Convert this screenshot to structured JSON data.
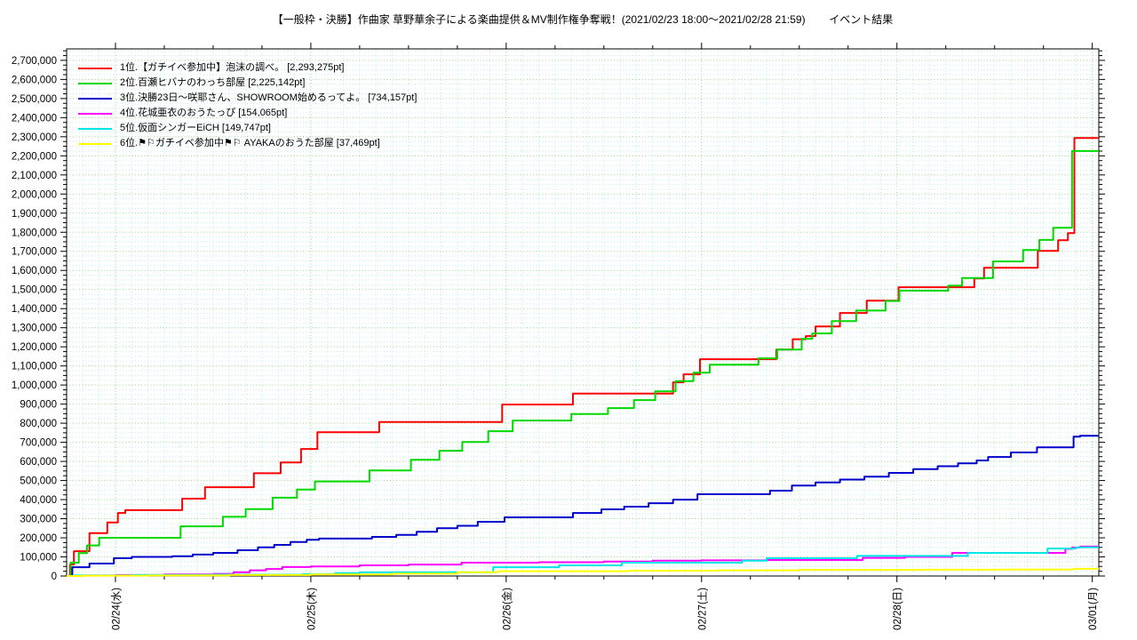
{
  "title": "【一般枠・決勝】作曲家 草野華余子による楽曲提供＆MV制作権争奪戦！(2021/02/23 18:00～2021/02/28 21:59)        イベント結果",
  "legend": {
    "items": [
      {
        "label": "1位.【ガチイベ参加中】泡沫の調べ。 [2,293,275pt]",
        "color": "#ff0000"
      },
      {
        "label": "2位.百瀬ヒバナのわっち部屋 [2,225,142pt]",
        "color": "#00d800"
      },
      {
        "label": "3位.決勝23日～咲耶さん、SHOWROOM始めるってよ。 [734,157pt]",
        "color": "#0000cc"
      },
      {
        "label": "4位.花城亜衣のおうたっぴ [154,065pt]",
        "color": "#ff00ff"
      },
      {
        "label": "5位.仮面シンガーEiCH [149,747pt]",
        "color": "#00e5e5"
      },
      {
        "label": "6位.⚑⚐ガチイベ参加中⚑⚐ AYAKAのおうた部屋 [37,469pt]",
        "color": "#ffff00"
      }
    ]
  },
  "chart_data": {
    "type": "line",
    "title": "【一般枠・決勝】作曲家 草野華余子による楽曲提供＆MV制作権争奪戦！(2021/02/23 18:00～2021/02/28 21:59) イベント結果",
    "x_axis": {
      "unit": "hours since 2021/02/23 18:00",
      "range": [
        0,
        126.8
      ],
      "major_ticks": [
        {
          "hour": 6,
          "label": "02/24(水)"
        },
        {
          "hour": 30,
          "label": "02/25(木)"
        },
        {
          "hour": 54,
          "label": "02/26(金)"
        },
        {
          "hour": 78,
          "label": "02/27(土)"
        },
        {
          "hour": 102,
          "label": "02/28(日)"
        },
        {
          "hour": 126,
          "label": "03/01(月)"
        }
      ],
      "minor_tick_interval_hours": 6,
      "minor_grid_interval_hours": 2
    },
    "y_axis": {
      "min": 0,
      "max": 2760000,
      "max_label": 2700000,
      "major_tick_interval": 100000,
      "minor_tick_interval": 25000,
      "label_format": "thousands-comma"
    },
    "grid": {
      "major_color": "#8fd98f",
      "minor_color": "#bcebeb",
      "style": "dotted"
    },
    "series": [
      {
        "name": "1位.【ガチイベ参加中】泡沫の調べ。",
        "final_points": 2293275,
        "color": "#ff0000",
        "points": [
          [
            0,
            0
          ],
          [
            0.4,
            60000
          ],
          [
            0.9,
            130000
          ],
          [
            2.8,
            225000
          ],
          [
            5.0,
            280000
          ],
          [
            6.3,
            330000
          ],
          [
            7.2,
            345000
          ],
          [
            14.2,
            405000
          ],
          [
            17.0,
            465000
          ],
          [
            23.0,
            538000
          ],
          [
            26.3,
            595000
          ],
          [
            28.8,
            665000
          ],
          [
            30.8,
            753000
          ],
          [
            38.4,
            806000
          ],
          [
            53.5,
            898000
          ],
          [
            62.2,
            955000
          ],
          [
            74.5,
            1014000
          ],
          [
            75.8,
            1056000
          ],
          [
            77.8,
            1135000
          ],
          [
            87.2,
            1186000
          ],
          [
            89.2,
            1240000
          ],
          [
            90.8,
            1256000
          ],
          [
            92.0,
            1307000
          ],
          [
            95.0,
            1377000
          ],
          [
            98.3,
            1442000
          ],
          [
            102.2,
            1512000
          ],
          [
            111.5,
            1558000
          ],
          [
            112.7,
            1614000
          ],
          [
            119.3,
            1702000
          ],
          [
            121.8,
            1758000
          ],
          [
            123.0,
            1795000
          ],
          [
            123.8,
            2293275
          ],
          [
            126.8,
            2293275
          ]
        ]
      },
      {
        "name": "2位.百瀬ヒバナのわっち部屋",
        "final_points": 2225142,
        "color": "#00d800",
        "points": [
          [
            0,
            0
          ],
          [
            0.5,
            70000
          ],
          [
            1.5,
            120000
          ],
          [
            2.5,
            160000
          ],
          [
            4.0,
            200000
          ],
          [
            14.0,
            260000
          ],
          [
            19.2,
            310000
          ],
          [
            22.0,
            350000
          ],
          [
            25.3,
            410000
          ],
          [
            28.3,
            453000
          ],
          [
            30.5,
            495000
          ],
          [
            37.2,
            553000
          ],
          [
            42.3,
            609000
          ],
          [
            45.8,
            656000
          ],
          [
            48.6,
            702000
          ],
          [
            51.8,
            758000
          ],
          [
            54.8,
            814000
          ],
          [
            62.0,
            848000
          ],
          [
            66.5,
            879000
          ],
          [
            69.7,
            921000
          ],
          [
            72.3,
            967000
          ],
          [
            74.8,
            1020000
          ],
          [
            77.0,
            1065000
          ],
          [
            79.0,
            1107000
          ],
          [
            85.0,
            1140000
          ],
          [
            87.3,
            1186000
          ],
          [
            90.3,
            1242000
          ],
          [
            91.6,
            1270000
          ],
          [
            94.0,
            1335000
          ],
          [
            97.0,
            1390000
          ],
          [
            100.6,
            1440000
          ],
          [
            102.3,
            1494000
          ],
          [
            108.3,
            1520000
          ],
          [
            110.0,
            1560000
          ],
          [
            113.8,
            1647000
          ],
          [
            117.5,
            1707000
          ],
          [
            119.5,
            1760000
          ],
          [
            121.2,
            1823000
          ],
          [
            123.5,
            2225142
          ],
          [
            126.8,
            2225142
          ]
        ]
      },
      {
        "name": "3位.決勝23日～咲耶さん、SHOWROOM始めるってよ。",
        "final_points": 734157,
        "color": "#0000cc",
        "points": [
          [
            0,
            0
          ],
          [
            0.7,
            46000
          ],
          [
            2.8,
            65000
          ],
          [
            5.8,
            93000
          ],
          [
            8.0,
            100000
          ],
          [
            13.0,
            104000
          ],
          [
            15.5,
            112000
          ],
          [
            18.0,
            121000
          ],
          [
            21.0,
            135000
          ],
          [
            23.5,
            150000
          ],
          [
            25.5,
            163000
          ],
          [
            27.5,
            178000
          ],
          [
            29.5,
            190000
          ],
          [
            31.0,
            196000
          ],
          [
            37.5,
            205000
          ],
          [
            40.5,
            215000
          ],
          [
            43.0,
            232000
          ],
          [
            45.5,
            250000
          ],
          [
            48.0,
            263000
          ],
          [
            50.5,
            284000
          ],
          [
            53.8,
            307000
          ],
          [
            62.2,
            330000
          ],
          [
            65.7,
            349000
          ],
          [
            68.5,
            363000
          ],
          [
            71.5,
            381000
          ],
          [
            74.5,
            400000
          ],
          [
            77.5,
            428000
          ],
          [
            86.4,
            447000
          ],
          [
            89.1,
            474000
          ],
          [
            92.0,
            490000
          ],
          [
            95.0,
            505000
          ],
          [
            98.0,
            520000
          ],
          [
            101.0,
            540000
          ],
          [
            104.0,
            560000
          ],
          [
            107.0,
            575000
          ],
          [
            109.5,
            590000
          ],
          [
            111.8,
            605000
          ],
          [
            113.2,
            623000
          ],
          [
            116.0,
            647000
          ],
          [
            119.2,
            674000
          ],
          [
            123.7,
            730000
          ],
          [
            124.5,
            734157
          ],
          [
            126.8,
            734157
          ]
        ]
      },
      {
        "name": "4位.花城亜衣のおうたっぴ",
        "final_points": 154065,
        "color": "#ff00ff",
        "points": [
          [
            0,
            0
          ],
          [
            2,
            3000
          ],
          [
            6,
            5000
          ],
          [
            12,
            8000
          ],
          [
            18,
            11000
          ],
          [
            20.5,
            20000
          ],
          [
            22.5,
            30000
          ],
          [
            24.5,
            37000
          ],
          [
            26.5,
            47000
          ],
          [
            30,
            50000
          ],
          [
            36,
            56000
          ],
          [
            42,
            60000
          ],
          [
            48.5,
            70000
          ],
          [
            58,
            72000
          ],
          [
            66,
            76000
          ],
          [
            72,
            80000
          ],
          [
            78,
            82000
          ],
          [
            86,
            84000
          ],
          [
            97.8,
            95000
          ],
          [
            103,
            100000
          ],
          [
            108.8,
            121000
          ],
          [
            122.7,
            142000
          ],
          [
            123.5,
            149000
          ],
          [
            124.5,
            154065
          ],
          [
            126.8,
            154065
          ]
        ]
      },
      {
        "name": "5位.仮面シンガーEiCH",
        "final_points": 149747,
        "color": "#00e5e5",
        "points": [
          [
            0,
            0
          ],
          [
            1,
            3000
          ],
          [
            8,
            5000
          ],
          [
            18,
            7000
          ],
          [
            29,
            10000
          ],
          [
            33,
            15000
          ],
          [
            36,
            19000
          ],
          [
            52.4,
            46000
          ],
          [
            60.5,
            56000
          ],
          [
            68.2,
            70000
          ],
          [
            83,
            80000
          ],
          [
            86,
            93000
          ],
          [
            97.1,
            105000
          ],
          [
            110.7,
            121000
          ],
          [
            120.5,
            144000
          ],
          [
            124,
            149747
          ],
          [
            126.8,
            149747
          ]
        ]
      },
      {
        "name": "6位.⚑⚐ガチイベ参加中⚑⚐ AYAKAのおうた部屋",
        "final_points": 37469,
        "color": "#ffff00",
        "points": [
          [
            0,
            0
          ],
          [
            2,
            2000
          ],
          [
            10,
            3000
          ],
          [
            20,
            5000
          ],
          [
            30,
            8000
          ],
          [
            40,
            12000
          ],
          [
            48,
            20000
          ],
          [
            53,
            25000
          ],
          [
            69,
            28000
          ],
          [
            80,
            30000
          ],
          [
            90,
            32000
          ],
          [
            105,
            33000
          ],
          [
            115,
            34000
          ],
          [
            123.7,
            37469
          ],
          [
            126.8,
            37469
          ]
        ]
      }
    ]
  }
}
